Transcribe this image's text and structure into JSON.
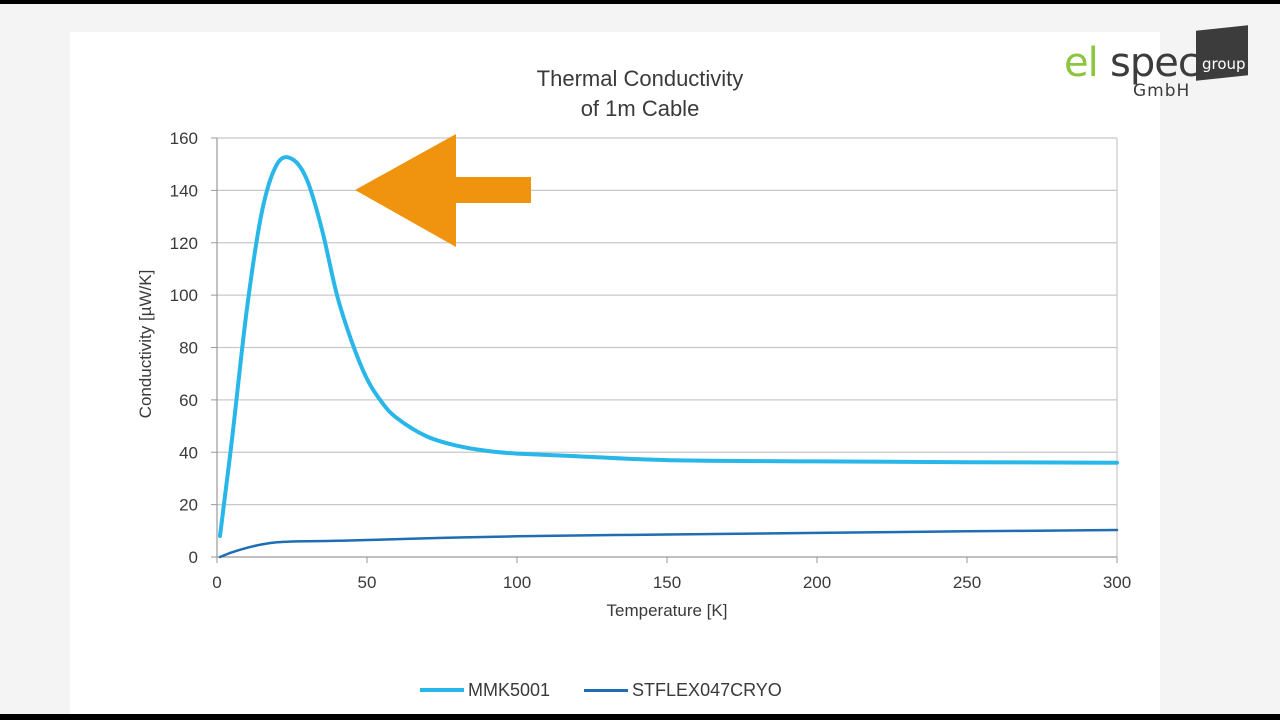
{
  "logo": {
    "part1": "el",
    "part2": "spec",
    "suffix": "GmbH",
    "badge": "group",
    "color_green": "#8cc63f",
    "color_dark": "#3c3c3c"
  },
  "annotation": {
    "arrow_color": "#f0940f",
    "arrow_direction": "left",
    "points_to": "MMK5001 peak"
  },
  "chart_data": {
    "type": "line",
    "title": [
      "Thermal  Conductivity",
      "of 1m Cable"
    ],
    "xlabel": "Temperature [K]",
    "ylabel": "Conductivity [µW/K]",
    "xlim": [
      0,
      300
    ],
    "ylim": [
      0,
      160
    ],
    "xticks": [
      0,
      50,
      100,
      150,
      200,
      250,
      300
    ],
    "yticks": [
      0,
      20,
      40,
      60,
      80,
      100,
      120,
      140,
      160
    ],
    "grid": true,
    "legend_position": "bottom",
    "series": [
      {
        "name": "MMK5001",
        "color": "#29b6e8",
        "x": [
          1,
          5,
          10,
          15,
          20,
          25,
          30,
          35,
          40,
          45,
          50,
          55,
          60,
          70,
          80,
          90,
          100,
          120,
          150,
          200,
          250,
          300
        ],
        "y": [
          8,
          45,
          95,
          132,
          150,
          152,
          144,
          125,
          100,
          82,
          68,
          59,
          53,
          46,
          42.5,
          40.5,
          39.5,
          38.5,
          37,
          36.5,
          36.2,
          36
        ]
      },
      {
        "name": "STFLEX047CRYO",
        "color": "#1f6db3",
        "x": [
          1,
          5,
          10,
          15,
          20,
          25,
          30,
          40,
          50,
          75,
          100,
          150,
          200,
          250,
          300
        ],
        "y": [
          0,
          1.8,
          3.5,
          4.8,
          5.6,
          5.9,
          6.0,
          6.2,
          6.5,
          7.3,
          7.9,
          8.6,
          9.2,
          9.8,
          10.3
        ]
      }
    ]
  }
}
